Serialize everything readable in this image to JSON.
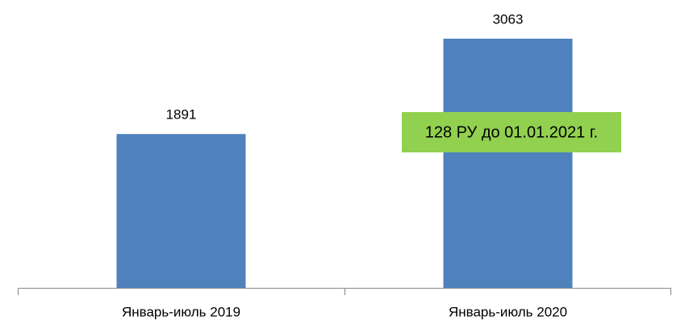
{
  "chart_data": {
    "type": "bar",
    "categories": [
      "Январь-июль 2019",
      "Январь-июль 2020"
    ],
    "values": [
      1891,
      3063
    ],
    "color": "#4f81bd",
    "annotation": "128 РУ до 01.01.2021 г.",
    "annotation_color": "#92d050"
  }
}
